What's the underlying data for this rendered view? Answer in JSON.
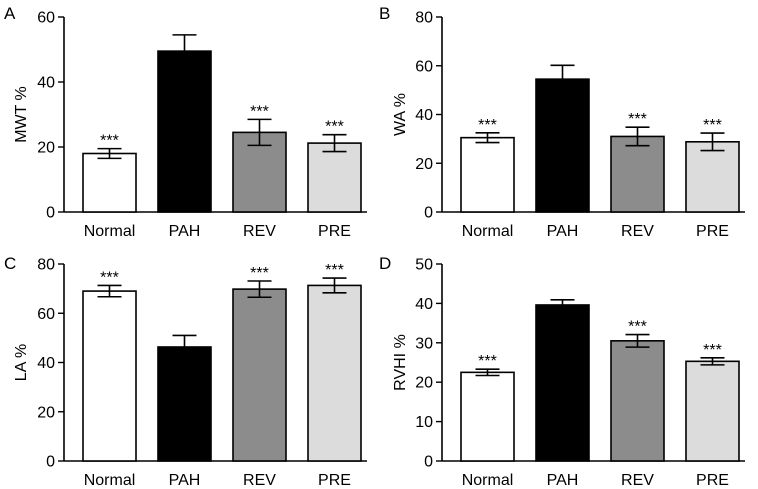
{
  "chart_data": [
    {
      "type": "bar",
      "panel": "A",
      "ylabel": "MWT %",
      "ylim": [
        0,
        60
      ],
      "yticks": [
        0,
        20,
        40,
        60
      ],
      "categories": [
        "Normal",
        "PAH",
        "REV",
        "PRE"
      ],
      "values": [
        18,
        49.5,
        24.5,
        21.2
      ],
      "errors": [
        1.5,
        5,
        4,
        2.6
      ],
      "significance": [
        "***",
        "",
        "***",
        "***"
      ],
      "colors": [
        "#ffffff",
        "#000000",
        "#8c8c8c",
        "#dcdcdc"
      ]
    },
    {
      "type": "bar",
      "panel": "B",
      "ylabel": "WA %",
      "ylim": [
        0,
        80
      ],
      "yticks": [
        0,
        20,
        40,
        60,
        80
      ],
      "categories": [
        "Normal",
        "PAH",
        "REV",
        "PRE"
      ],
      "values": [
        30.5,
        54.5,
        31,
        28.8
      ],
      "errors": [
        2,
        5.7,
        3.8,
        3.6
      ],
      "significance": [
        "***",
        "",
        "***",
        "***"
      ],
      "colors": [
        "#ffffff",
        "#000000",
        "#8c8c8c",
        "#dcdcdc"
      ]
    },
    {
      "type": "bar",
      "panel": "C",
      "ylabel": "LA %",
      "ylim": [
        0,
        80
      ],
      "yticks": [
        0,
        20,
        40,
        60,
        80
      ],
      "categories": [
        "Normal",
        "PAH",
        "REV",
        "PRE"
      ],
      "values": [
        69,
        46.3,
        69.8,
        71.3
      ],
      "errors": [
        2.3,
        4.7,
        3.3,
        3
      ],
      "significance": [
        "***",
        "",
        "***",
        "***"
      ],
      "colors": [
        "#ffffff",
        "#000000",
        "#8c8c8c",
        "#dcdcdc"
      ]
    },
    {
      "type": "bar",
      "panel": "D",
      "ylabel": "RVHI %",
      "ylim": [
        0,
        50
      ],
      "yticks": [
        0,
        10,
        20,
        30,
        40,
        50
      ],
      "categories": [
        "Normal",
        "PAH",
        "REV",
        "PRE"
      ],
      "values": [
        22.5,
        39.6,
        30.5,
        25.3
      ],
      "errors": [
        0.8,
        1.3,
        1.6,
        0.9
      ],
      "significance": [
        "***",
        "",
        "***",
        "***"
      ],
      "colors": [
        "#ffffff",
        "#000000",
        "#8c8c8c",
        "#dcdcdc"
      ]
    }
  ]
}
